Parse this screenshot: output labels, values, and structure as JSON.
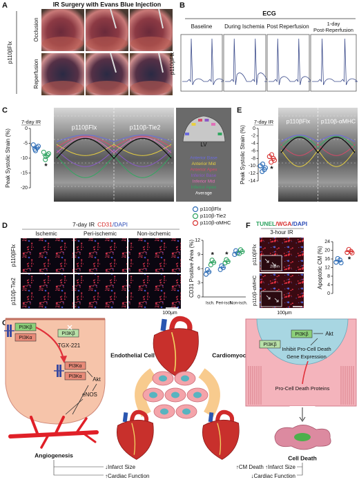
{
  "panels": {
    "A": {
      "letter": "A",
      "title": "IR Surgery with Evans Blue Injection",
      "row_labels": [
        "Occlusion",
        "Reperfusion"
      ],
      "group_label": "p110βFlx"
    },
    "B": {
      "letter": "B",
      "title": "ECG",
      "columns": [
        "Baseline",
        "During Ischemia",
        "Post Reperfusion",
        [
          "1-day",
          "Post-Reperfusion"
        ]
      ],
      "group_label": "p110βFlx"
    },
    "C": {
      "letter": "C",
      "image_labels": [
        "p110βFlx",
        "p110β-Tie2"
      ],
      "diagram_label": "LV",
      "segments": [
        {
          "name": "Anterior Base",
          "color": "#6a6ae0"
        },
        {
          "name": "Anterior Mid",
          "color": "#e8d040"
        },
        {
          "name": "Anterior Apex",
          "color": "#d84a6a"
        },
        {
          "name": "Inferior Base",
          "color": "#8a5ac8"
        },
        {
          "name": "Inferior Mid",
          "color": "#e070b8"
        },
        {
          "name": "Inferior Apex",
          "color": "#30a860"
        },
        {
          "name": "Average",
          "color": "#111111"
        }
      ]
    },
    "D": {
      "letter": "D",
      "title": [
        "7-day IR",
        "CD31",
        "/DAPI"
      ],
      "columns": [
        "Ischemic",
        "Peri-ischemic",
        "Non-ischemic"
      ],
      "row_labels": [
        "p110βFlx",
        "p110β-Tie2"
      ],
      "scale_bar": "100μm"
    },
    "E": {
      "letter": "E",
      "image_labels": [
        "p110βFlx",
        "p110β-αMHC"
      ]
    },
    "F": {
      "letter": "F",
      "title": [
        "TUNEL",
        "/WGA",
        "/DAPI"
      ],
      "subtitle": "3-hour IR",
      "row_labels": [
        "p110βFlx",
        "p110β-αMHC"
      ],
      "inset_scale_bar": "20μm",
      "scale_bar": "100μm"
    },
    "G": {
      "letter": "G",
      "left": {
        "kinases": [
          "PI3Kβ",
          "PI3Kα"
        ],
        "inhibited": "PI3Kβ",
        "inhibitor": "TGX-221",
        "active_kinases": [
          "PI3Kα",
          "PI3Kα"
        ],
        "akt": "Akt",
        "enos": "eNOS",
        "outcome": "Angiogenesis",
        "effects": [
          "↓Infarct Size",
          "↑Cardiac Function"
        ]
      },
      "center": {
        "cells": [
          "Endothelial Cell",
          "Cardiomyocyte"
        ]
      },
      "right": {
        "kinase": "PI3Kβ",
        "akt": "Akt",
        "inhibited": "PI3Kβ",
        "action": [
          "Inhibit Pro-Cell Death",
          "Gene Expression"
        ],
        "proteins": "Pro-Cell Death Proteins",
        "outcome": "Cell Death",
        "effects": [
          "↑CM Death ↑Infarct Size",
          "↓Cardiac Function"
        ]
      }
    }
  },
  "legend": [
    {
      "name": "p110βFlx",
      "color": "#2a6ab5"
    },
    {
      "name": "p110β-Tie2",
      "color": "#2ca25f"
    },
    {
      "name": "p110β-αMHC",
      "color": "#d7302f"
    }
  ],
  "chart_data": [
    {
      "type": "dot",
      "title": "7-day IR",
      "y_label": "Peak Systolic Strain (%)",
      "ylim": [
        -20,
        0
      ],
      "yticks": [
        0,
        -5,
        -10,
        -15,
        -20
      ],
      "series": [
        {
          "color": "#2a6ab5",
          "values": [
            -5.5,
            -6.5,
            -7,
            -6,
            -7.5
          ]
        },
        {
          "color": "#2ca25f",
          "values": [
            -8,
            -9,
            -10.5,
            -8.5,
            -9.5
          ]
        }
      ],
      "annotation": "*"
    },
    {
      "type": "dot",
      "title": "7-day IR",
      "y_label": "Peak Systolic Strain (%)",
      "ylim": [
        -14,
        0
      ],
      "yticks": [
        0,
        -2,
        -4,
        -6,
        -8,
        -10,
        -12,
        -14
      ],
      "series": [
        {
          "color": "#2a6ab5",
          "values": [
            -10,
            -11,
            -11.5,
            -10.5,
            -9.5
          ]
        },
        {
          "color": "#d7302f",
          "values": [
            -7.5,
            -8,
            -9,
            -8.5,
            -7
          ]
        }
      ],
      "annotation": "*"
    },
    {
      "type": "grouped-dot",
      "y_label": "CD31 Positive Area (%)",
      "ylim": [
        0,
        12
      ],
      "yticks": [
        0,
        3,
        6,
        9,
        12
      ],
      "categories": [
        "Isch.",
        "Peri-isch.",
        "Non-isch."
      ],
      "series": [
        {
          "color": "#2a6ab5",
          "values": [
            [
              4.8,
              5.3,
              5.8
            ],
            [
              5.8,
              6.2,
              6.6
            ],
            [
              9,
              9.3,
              9.8
            ]
          ]
        },
        {
          "color": "#2ca25f",
          "values": [
            [
              6.8,
              7.3,
              7.8
            ],
            [
              7.2,
              7.5,
              7.9
            ],
            [
              9.2,
              9.6,
              10
            ]
          ]
        }
      ],
      "annotations": [
        "*",
        "*",
        null
      ]
    },
    {
      "type": "dot",
      "y_label": "Apoptotic CM (%)",
      "ylim": [
        0,
        24
      ],
      "yticks": [
        0,
        4,
        8,
        12,
        16,
        20,
        24
      ],
      "series": [
        {
          "color": "#2a6ab5",
          "values": [
            14.5,
            15.5,
            16.2,
            14.2
          ]
        },
        {
          "color": "#d7302f",
          "values": [
            19,
            19.5,
            20.4,
            18.8
          ]
        }
      ],
      "annotation": "*"
    }
  ]
}
